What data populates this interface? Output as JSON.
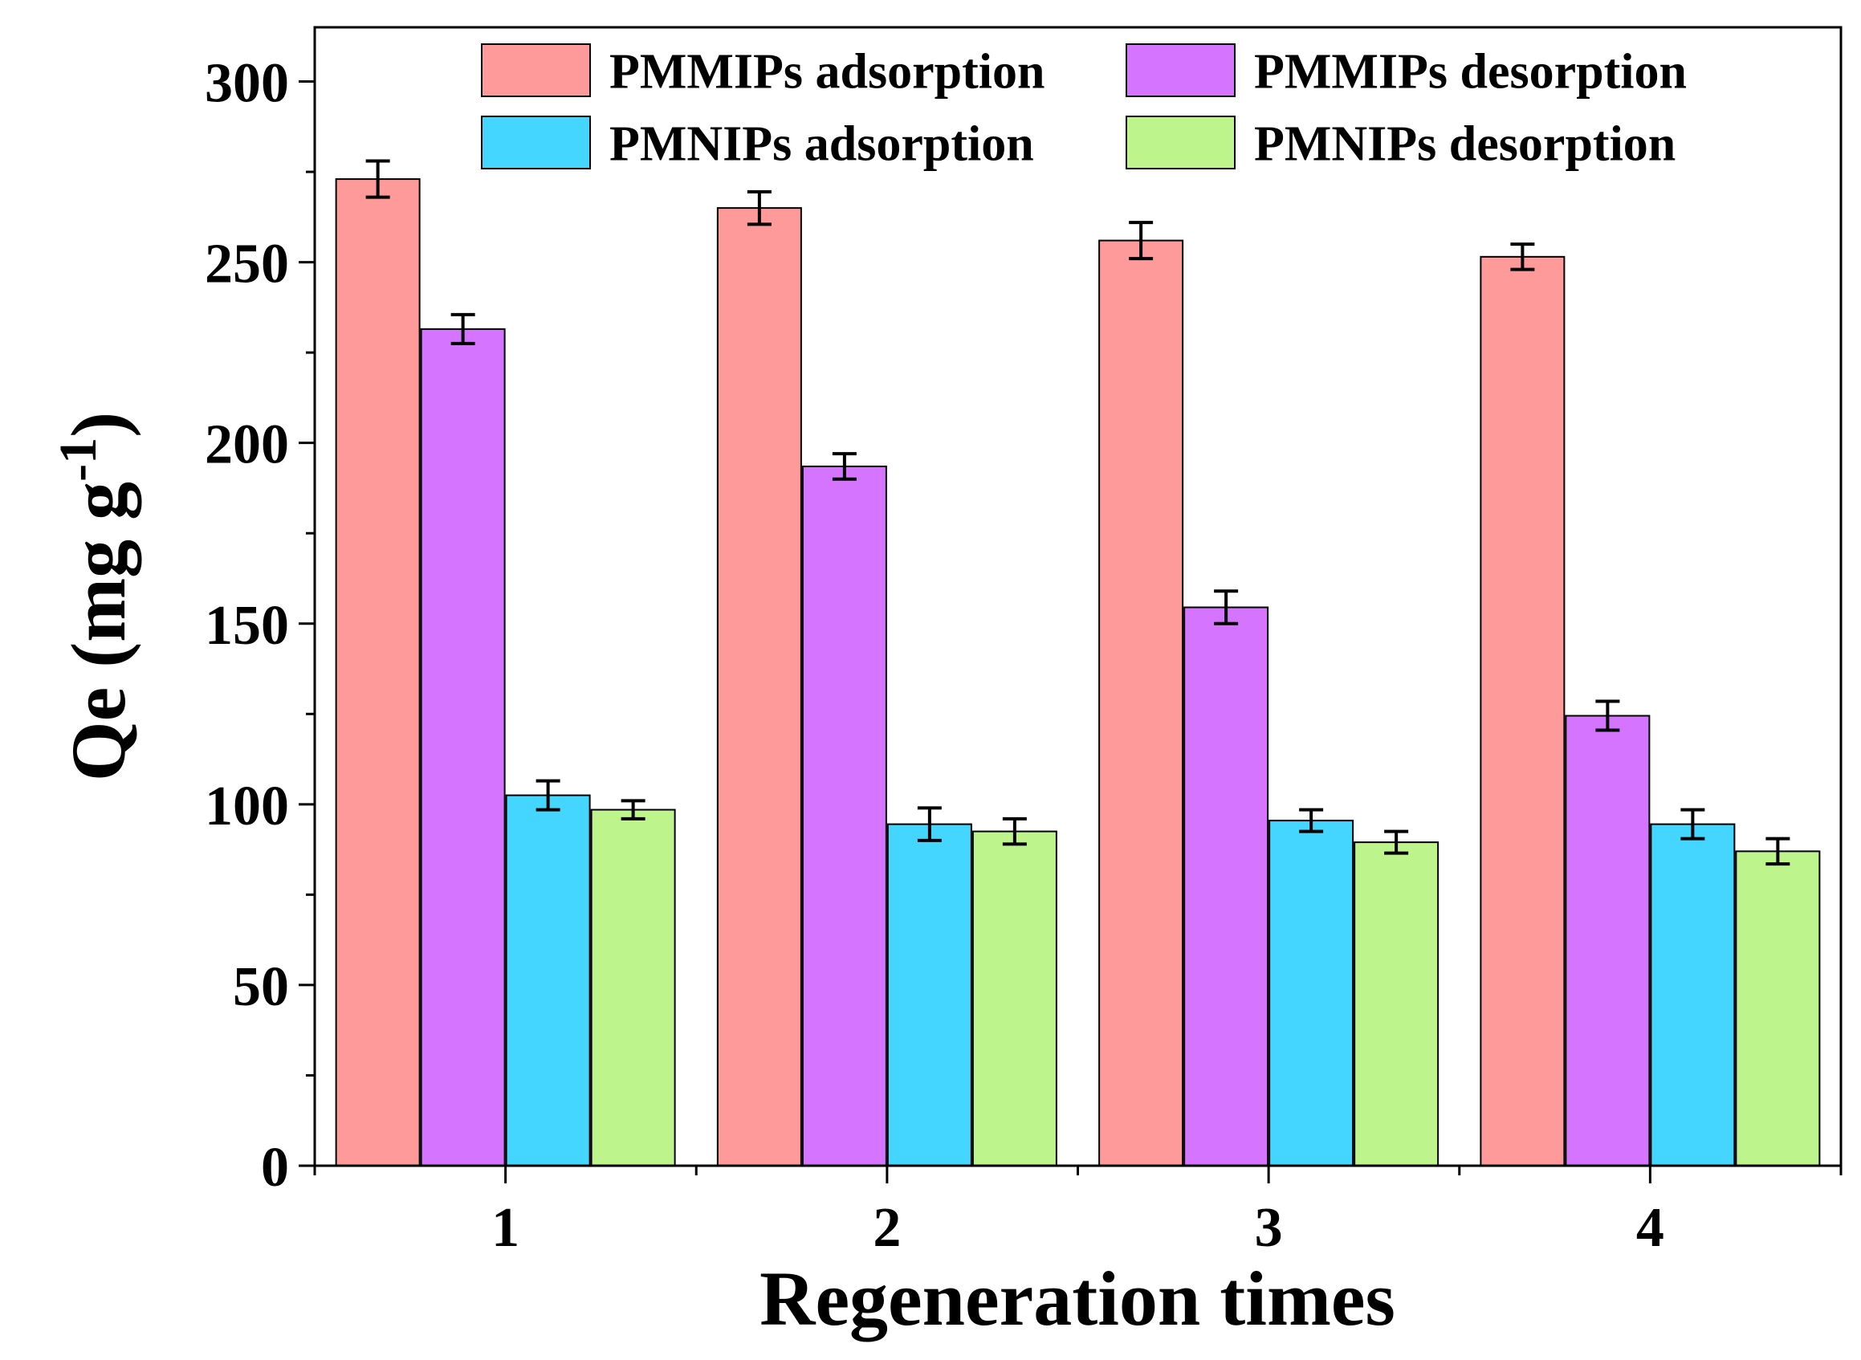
{
  "chart_data": {
    "type": "bar",
    "title": "",
    "xlabel": "Regeneration times",
    "ylabel_main": "Qe (mg g",
    "ylabel_sup": "-1",
    "ylabel_close": ")",
    "categories": [
      "1",
      "2",
      "3",
      "4"
    ],
    "ylim": [
      0,
      315
    ],
    "yticks": [
      0,
      50,
      100,
      150,
      200,
      250,
      300
    ],
    "grid": false,
    "legend_position": "top",
    "series": [
      {
        "name": "PMMIPs adsorption",
        "color": "#ff9a9a",
        "values": [
          273,
          265,
          256,
          251.5
        ],
        "errors": [
          5,
          4.5,
          5,
          3.5
        ]
      },
      {
        "name": "PMMIPs desorption",
        "color": "#d575ff",
        "values": [
          231.5,
          193.5,
          154.5,
          124.5
        ],
        "errors": [
          4,
          3.5,
          4.5,
          4
        ]
      },
      {
        "name": "PMNIPs adsorption",
        "color": "#45d6ff",
        "values": [
          102.5,
          94.5,
          95.5,
          94.5
        ],
        "errors": [
          4,
          4.5,
          3,
          4
        ]
      },
      {
        "name": "PMNIPs desorption",
        "color": "#bdf58c",
        "values": [
          98.5,
          92.5,
          89.5,
          87
        ],
        "errors": [
          2.5,
          3.5,
          3,
          3.5
        ]
      }
    ]
  }
}
